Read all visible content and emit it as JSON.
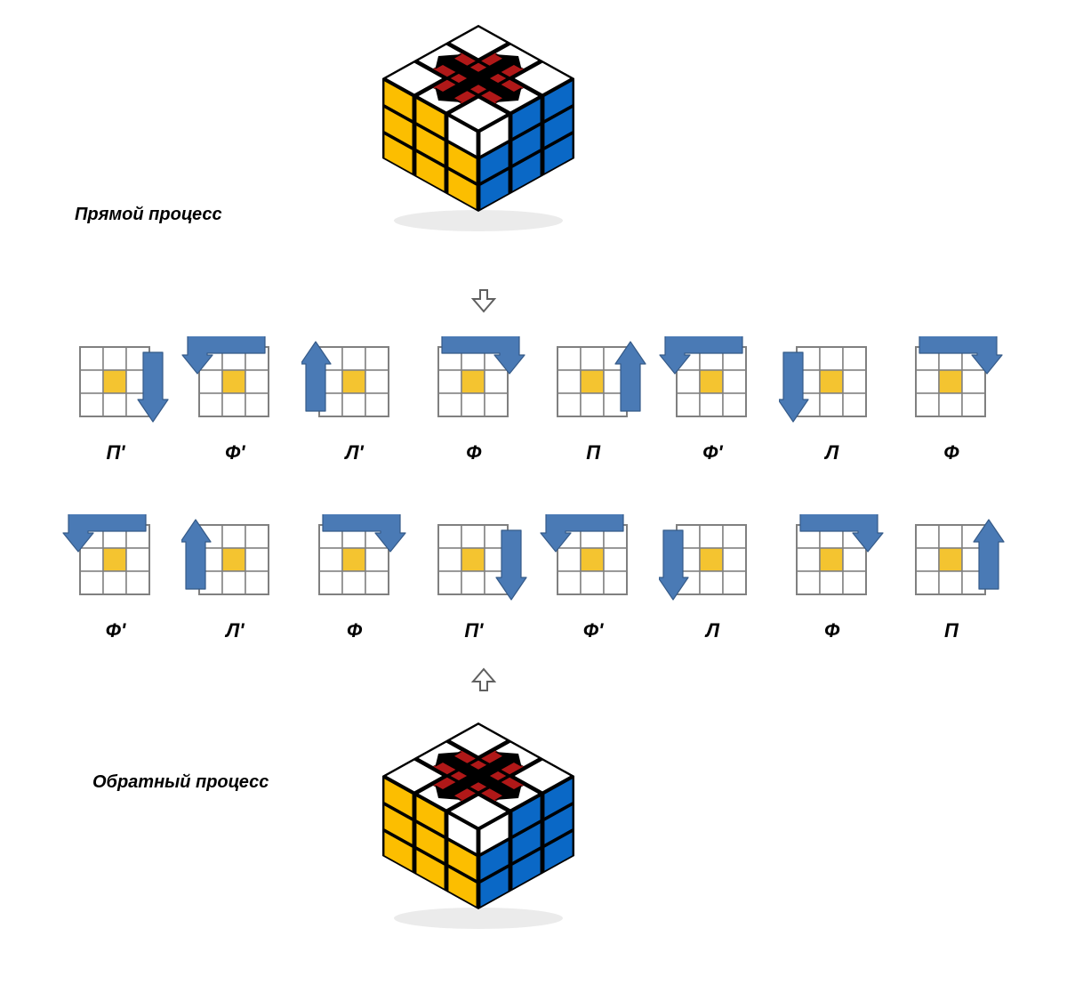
{
  "labels": {
    "forward": "Прямой процесс",
    "reverse": "Обратный процесс"
  },
  "colors": {
    "arrow_fill": "#4a7ab5",
    "arrow_stroke": "#355a88",
    "grid_stroke": "#808080",
    "grid_fill": "#ffffff",
    "center_fill": "#f4c430",
    "cube_yellow": "#fcbe00",
    "cube_blue": "#0a68c6",
    "cube_white": "#ffffff",
    "cube_red": "#b01818",
    "cube_edge": "#000000",
    "connector_stroke": "#606060",
    "connector_fill": "#ffffff",
    "text": "#000000",
    "background": "#ffffff"
  },
  "cube": {
    "top_pattern": [
      [
        "white",
        "white",
        "white"
      ],
      [
        "white",
        "red",
        "white"
      ],
      [
        "white",
        "white",
        "white"
      ]
    ],
    "top_cross": [
      "red",
      "red",
      "red",
      "red"
    ],
    "left_face": "yellow",
    "right_face": "blue"
  },
  "connectors": [
    {
      "direction": "down"
    },
    {
      "direction": "up"
    }
  ],
  "rows": [
    {
      "moves": [
        {
          "label": "П'",
          "arrow": "right-down"
        },
        {
          "label": "Ф'",
          "arrow": "top-ccw"
        },
        {
          "label": "Л'",
          "arrow": "left-up"
        },
        {
          "label": "Ф",
          "arrow": "top-cw"
        },
        {
          "label": "П",
          "arrow": "right-up"
        },
        {
          "label": "Ф'",
          "arrow": "top-ccw"
        },
        {
          "label": "Л",
          "arrow": "left-down"
        },
        {
          "label": "Ф",
          "arrow": "top-cw"
        }
      ]
    },
    {
      "moves": [
        {
          "label": "Ф'",
          "arrow": "top-ccw"
        },
        {
          "label": "Л'",
          "arrow": "left-up"
        },
        {
          "label": "Ф",
          "arrow": "top-cw"
        },
        {
          "label": "П'",
          "arrow": "right-down"
        },
        {
          "label": "Ф'",
          "arrow": "top-ccw"
        },
        {
          "label": "Л",
          "arrow": "left-down"
        },
        {
          "label": "Ф",
          "arrow": "top-cw"
        },
        {
          "label": "П",
          "arrow": "right-up"
        }
      ]
    }
  ],
  "layout": {
    "grid_size": 78,
    "arrow_width": 22,
    "arrow_head": 34,
    "move_label_fontsize": 22,
    "heading_fontsize": 20
  }
}
